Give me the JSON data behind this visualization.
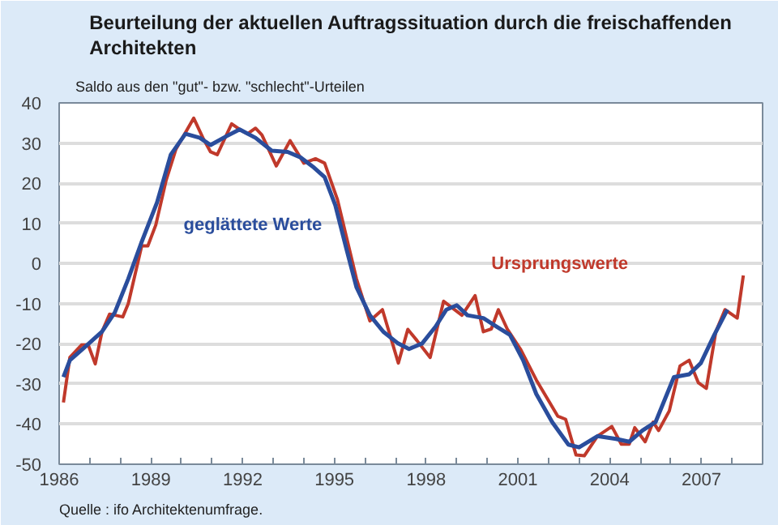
{
  "chart_data": {
    "type": "line",
    "title": "Beurteilung der aktuellen Auftragssituation durch die freischaffenden Architekten",
    "subtitle": "Saldo aus den \"gut\"- bzw. \"schlecht\"-Urteilen",
    "annotations": [
      "Quelle : ifo Architektenumfrage."
    ],
    "xlim": [
      1986,
      2009
    ],
    "ylim": [
      -50,
      40
    ],
    "yticks": [
      -50,
      -40,
      -30,
      -20,
      -10,
      0,
      10,
      20,
      30,
      40
    ],
    "xticks": [
      1986,
      {
        "value": 1987,
        "label": null
      },
      {
        "value": 1988,
        "label": null
      },
      1989,
      {
        "value": 1990,
        "label": null
      },
      {
        "value": 1991,
        "label": null
      },
      1992,
      {
        "value": 1993,
        "label": null
      },
      {
        "value": 1994,
        "label": null
      },
      1995,
      {
        "value": 1996,
        "label": null
      },
      {
        "value": 1997,
        "label": null
      },
      1998,
      {
        "value": 1999,
        "label": null
      },
      {
        "value": 2000,
        "label": null
      },
      2001,
      {
        "value": 2002,
        "label": null
      },
      {
        "value": 2003,
        "label": null
      },
      2004,
      {
        "value": 2005,
        "label": null
      },
      {
        "value": 2006,
        "label": null
      },
      2007,
      {
        "value": 2008,
        "label": null
      }
    ],
    "grid": "y",
    "legend": false,
    "line_style": "solid",
    "marker": "none",
    "series": [
      {
        "name": "Ursprungswerte",
        "color": "#c0392b",
        "x": [
          1986.14,
          1986.35,
          1986.73,
          1986.95,
          1987.18,
          1987.4,
          1987.65,
          1988.08,
          1988.26,
          1988.7,
          1988.9,
          1989.16,
          1989.5,
          1989.82,
          1990.4,
          1990.7,
          1990.95,
          1991.17,
          1991.64,
          1991.9,
          1992.16,
          1992.42,
          1992.63,
          1993.1,
          1993.55,
          1994.0,
          1994.38,
          1994.68,
          1995.1,
          1995.72,
          1996.16,
          1996.57,
          1997.09,
          1997.4,
          1997.7,
          1998.13,
          1998.57,
          1999.17,
          1999.6,
          1999.87,
          2000.13,
          2000.36,
          2000.65,
          2001.08,
          2001.6,
          2002.3,
          2002.56,
          2002.9,
          2003.17,
          2003.6,
          2004.07,
          2004.38,
          2004.64,
          2004.82,
          2005.16,
          2005.42,
          2005.6,
          2005.95,
          2006.3,
          2006.6,
          2006.9,
          2007.16,
          2007.47,
          2007.77,
          2008.17,
          2008.37
        ],
        "values": [
          -34.6,
          -23.4,
          -20.3,
          -20.3,
          -25,
          -17,
          -12.6,
          -13.3,
          -10,
          4.4,
          4.4,
          9.6,
          20.8,
          28.5,
          36.2,
          31.3,
          27.8,
          27.1,
          34.8,
          33.4,
          32.3,
          33.7,
          32,
          24.3,
          30.6,
          25,
          26.1,
          25,
          15.9,
          -3.8,
          -14.3,
          -11.5,
          -24.8,
          -16.4,
          -19.2,
          -23.4,
          -9.4,
          -12.9,
          -8,
          -17,
          -16.3,
          -11.5,
          -16.3,
          -21.3,
          -29,
          -38,
          -38.8,
          -47.7,
          -47.9,
          -43,
          -40.6,
          -45,
          -45,
          -40.9,
          -44.4,
          -39.5,
          -41.6,
          -36.7,
          -25.5,
          -24.1,
          -29.7,
          -31.1,
          -17,
          -11.5,
          -13.6,
          -3
        ]
      },
      {
        "name": "geglättete Werte",
        "color": "#2a4d9c",
        "x": [
          1986.14,
          1986.35,
          1986.87,
          1987.4,
          1987.82,
          1988.26,
          1988.7,
          1989.2,
          1989.65,
          1990.13,
          1990.6,
          1990.95,
          1991.47,
          1991.9,
          1992.42,
          1992.95,
          1993.47,
          1993.9,
          1994.33,
          1994.68,
          1995.03,
          1995.38,
          1995.72,
          1996.16,
          1996.6,
          1997.08,
          1997.44,
          1997.87,
          1998.31,
          1998.66,
          1999.0,
          1999.35,
          1999.87,
          2000.3,
          2000.74,
          2001.17,
          2001.6,
          2002.12,
          2002.65,
          2003.0,
          2003.6,
          2004.21,
          2004.64,
          2005.07,
          2005.5,
          2006.1,
          2006.6,
          2006.98,
          2007.42,
          2007.85
        ],
        "values": [
          -28.3,
          -24.1,
          -20.6,
          -17,
          -12.2,
          -3.8,
          5.4,
          15.2,
          27.1,
          32.3,
          31.3,
          29.5,
          31.7,
          33.4,
          31.3,
          28.1,
          27.8,
          26.4,
          23.9,
          21.5,
          14.5,
          4,
          -5.9,
          -12.9,
          -17,
          -19.9,
          -21.3,
          -19.9,
          -15.7,
          -11.5,
          -10.4,
          -12.9,
          -13.6,
          -15.7,
          -17.8,
          -24.1,
          -32.5,
          -39.5,
          -45.1,
          -45.8,
          -43,
          -43.7,
          -44.4,
          -41.6,
          -39.5,
          -28.3,
          -27.6,
          -24.8,
          -17.8,
          -11.5
        ]
      }
    ]
  }
}
